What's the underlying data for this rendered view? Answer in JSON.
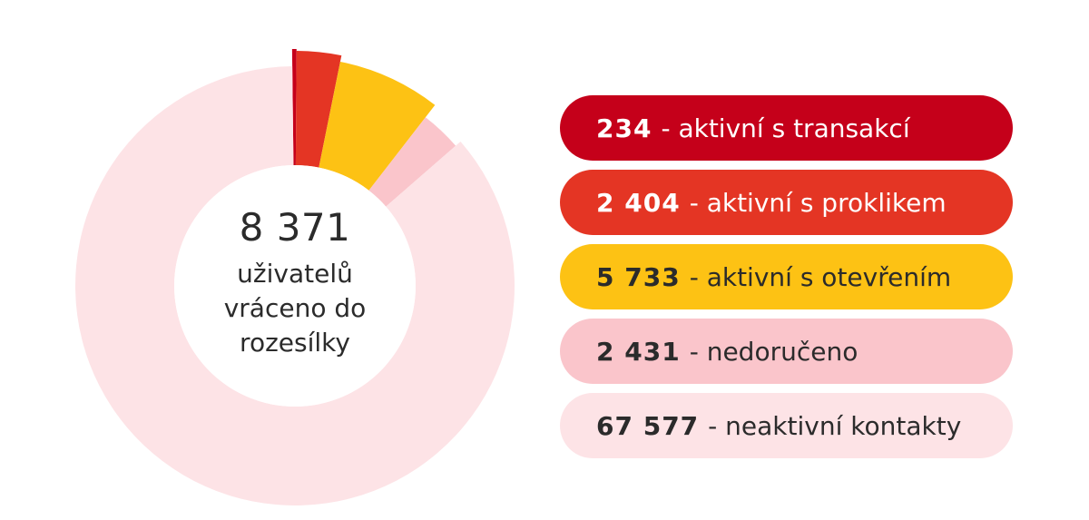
{
  "chart_data": {
    "type": "pie",
    "variant": "donut",
    "center_value": "8 371",
    "center_label": "uživatelů\nvráceno do\nrozesílky",
    "slices": [
      {
        "value": 234,
        "label": "- aktivní s transakcí",
        "value_text": "234",
        "color": "#c5001a",
        "text_color": "#ffffff"
      },
      {
        "value": 2404,
        "label": "- aktivní s proklikem",
        "value_text": "2 404",
        "color": "#e43524",
        "text_color": "#ffffff"
      },
      {
        "value": 5733,
        "label": "- aktivní s otevřením",
        "value_text": "5 733",
        "color": "#fdc214",
        "text_color": "#2b2b2b"
      },
      {
        "value": 2431,
        "label": "- nedoručeno",
        "value_text": "2 431",
        "color": "#fac5cb",
        "text_color": "#2b2b2b"
      },
      {
        "value": 67577,
        "label": "- neaktivní kontakty",
        "value_text": "67 577",
        "color": "#fde3e6",
        "text_color": "#2b2b2b"
      }
    ]
  }
}
